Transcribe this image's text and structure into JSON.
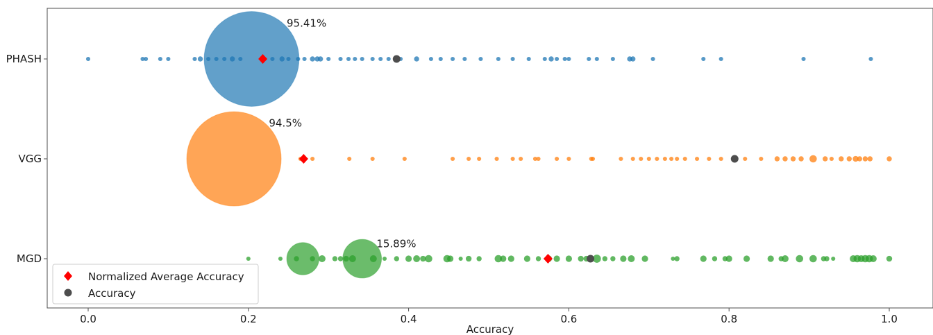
{
  "chart_data": {
    "type": "scatter",
    "title": "",
    "xlabel": "Accuracy",
    "ylabel": "",
    "xlim": [
      -0.05,
      1.05
    ],
    "x_ticks": [
      0.0,
      0.2,
      0.4,
      0.6,
      0.8,
      1.0
    ],
    "x_tick_labels": [
      "0.0",
      "0.2",
      "0.4",
      "0.6",
      "0.8",
      "1.0"
    ],
    "grid": false,
    "legend_position": "bottom-left",
    "legend": [
      {
        "label": "Normalized Average Accuracy",
        "marker": "diamond",
        "color": "#ff0000"
      },
      {
        "label": "Accuracy",
        "marker": "circle",
        "color": "#4d4d4d"
      }
    ],
    "series": [
      {
        "name": "PHASH",
        "color": "#1f77b4",
        "points": [
          {
            "x": 0.0,
            "s": 1
          },
          {
            "x": 0.068,
            "s": 1
          },
          {
            "x": 0.072,
            "s": 1
          },
          {
            "x": 0.09,
            "s": 1
          },
          {
            "x": 0.1,
            "s": 1
          },
          {
            "x": 0.133,
            "s": 1
          },
          {
            "x": 0.14,
            "s": 2
          },
          {
            "x": 0.15,
            "s": 1
          },
          {
            "x": 0.16,
            "s": 1
          },
          {
            "x": 0.17,
            "s": 1
          },
          {
            "x": 0.18,
            "s": 2
          },
          {
            "x": 0.19,
            "s": 1
          },
          {
            "x": 0.204,
            "s": 95.41
          },
          {
            "x": 0.22,
            "s": 1
          },
          {
            "x": 0.23,
            "s": 1
          },
          {
            "x": 0.242,
            "s": 2
          },
          {
            "x": 0.25,
            "s": 1
          },
          {
            "x": 0.262,
            "s": 1
          },
          {
            "x": 0.27,
            "s": 1
          },
          {
            "x": 0.28,
            "s": 2
          },
          {
            "x": 0.286,
            "s": 2
          },
          {
            "x": 0.29,
            "s": 2
          },
          {
            "x": 0.3,
            "s": 1
          },
          {
            "x": 0.315,
            "s": 1
          },
          {
            "x": 0.325,
            "s": 1
          },
          {
            "x": 0.333,
            "s": 1
          },
          {
            "x": 0.342,
            "s": 1
          },
          {
            "x": 0.355,
            "s": 1
          },
          {
            "x": 0.365,
            "s": 1
          },
          {
            "x": 0.375,
            "s": 1
          },
          {
            "x": 0.39,
            "s": 1
          },
          {
            "x": 0.41,
            "s": 2
          },
          {
            "x": 0.428,
            "s": 1
          },
          {
            "x": 0.44,
            "s": 1
          },
          {
            "x": 0.455,
            "s": 1
          },
          {
            "x": 0.47,
            "s": 1
          },
          {
            "x": 0.49,
            "s": 1
          },
          {
            "x": 0.512,
            "s": 1
          },
          {
            "x": 0.53,
            "s": 1
          },
          {
            "x": 0.55,
            "s": 1
          },
          {
            "x": 0.57,
            "s": 1
          },
          {
            "x": 0.578,
            "s": 2
          },
          {
            "x": 0.585,
            "s": 1
          },
          {
            "x": 0.595,
            "s": 1
          },
          {
            "x": 0.6,
            "s": 1
          },
          {
            "x": 0.625,
            "s": 1
          },
          {
            "x": 0.635,
            "s": 1
          },
          {
            "x": 0.655,
            "s": 1
          },
          {
            "x": 0.676,
            "s": 2
          },
          {
            "x": 0.68,
            "s": 2
          },
          {
            "x": 0.705,
            "s": 1
          },
          {
            "x": 0.768,
            "s": 1
          },
          {
            "x": 0.79,
            "s": 1
          },
          {
            "x": 0.893,
            "s": 1
          },
          {
            "x": 0.977,
            "s": 1
          }
        ],
        "normalized_average_accuracy": 0.218,
        "accuracy": 0.385,
        "max_label": "95.41%"
      },
      {
        "name": "VGG",
        "color": "#ff7f0e",
        "points": [
          {
            "x": 0.182,
            "s": 94.5
          },
          {
            "x": 0.265,
            "s": 1
          },
          {
            "x": 0.28,
            "s": 1
          },
          {
            "x": 0.326,
            "s": 1
          },
          {
            "x": 0.355,
            "s": 1
          },
          {
            "x": 0.395,
            "s": 1
          },
          {
            "x": 0.455,
            "s": 1
          },
          {
            "x": 0.475,
            "s": 1
          },
          {
            "x": 0.488,
            "s": 1
          },
          {
            "x": 0.51,
            "s": 1
          },
          {
            "x": 0.53,
            "s": 1
          },
          {
            "x": 0.54,
            "s": 1
          },
          {
            "x": 0.558,
            "s": 1
          },
          {
            "x": 0.562,
            "s": 1
          },
          {
            "x": 0.585,
            "s": 1
          },
          {
            "x": 0.6,
            "s": 1
          },
          {
            "x": 0.628,
            "s": 1
          },
          {
            "x": 0.63,
            "s": 1
          },
          {
            "x": 0.665,
            "s": 1
          },
          {
            "x": 0.68,
            "s": 1
          },
          {
            "x": 0.69,
            "s": 1
          },
          {
            "x": 0.7,
            "s": 1
          },
          {
            "x": 0.71,
            "s": 1
          },
          {
            "x": 0.72,
            "s": 1
          },
          {
            "x": 0.728,
            "s": 1
          },
          {
            "x": 0.735,
            "s": 1
          },
          {
            "x": 0.745,
            "s": 1
          },
          {
            "x": 0.76,
            "s": 1
          },
          {
            "x": 0.775,
            "s": 1
          },
          {
            "x": 0.79,
            "s": 1
          },
          {
            "x": 0.82,
            "s": 1
          },
          {
            "x": 0.84,
            "s": 1
          },
          {
            "x": 0.86,
            "s": 2
          },
          {
            "x": 0.87,
            "s": 2
          },
          {
            "x": 0.88,
            "s": 2
          },
          {
            "x": 0.89,
            "s": 2
          },
          {
            "x": 0.905,
            "s": 6
          },
          {
            "x": 0.92,
            "s": 2
          },
          {
            "x": 0.928,
            "s": 1
          },
          {
            "x": 0.94,
            "s": 2
          },
          {
            "x": 0.95,
            "s": 2
          },
          {
            "x": 0.958,
            "s": 3
          },
          {
            "x": 0.963,
            "s": 2
          },
          {
            "x": 0.97,
            "s": 2
          },
          {
            "x": 0.976,
            "s": 2
          },
          {
            "x": 1.0,
            "s": 2
          }
        ],
        "normalized_average_accuracy": 0.269,
        "accuracy": 0.807,
        "max_label": "94.5%"
      },
      {
        "name": "MGD",
        "color": "#2ca02c",
        "points": [
          {
            "x": 0.2,
            "s": 1
          },
          {
            "x": 0.24,
            "s": 1
          },
          {
            "x": 0.26,
            "s": 2
          },
          {
            "x": 0.268,
            "s": 11
          },
          {
            "x": 0.28,
            "s": 2
          },
          {
            "x": 0.292,
            "s": 5
          },
          {
            "x": 0.308,
            "s": 2
          },
          {
            "x": 0.315,
            "s": 2
          },
          {
            "x": 0.322,
            "s": 3
          },
          {
            "x": 0.33,
            "s": 5
          },
          {
            "x": 0.342,
            "s": 15.89
          },
          {
            "x": 0.356,
            "s": 5
          },
          {
            "x": 0.37,
            "s": 1
          },
          {
            "x": 0.385,
            "s": 2
          },
          {
            "x": 0.4,
            "s": 4
          },
          {
            "x": 0.41,
            "s": 5
          },
          {
            "x": 0.418,
            "s": 3
          },
          {
            "x": 0.425,
            "s": 6
          },
          {
            "x": 0.448,
            "s": 6
          },
          {
            "x": 0.452,
            "s": 4
          },
          {
            "x": 0.465,
            "s": 1
          },
          {
            "x": 0.475,
            "s": 3
          },
          {
            "x": 0.488,
            "s": 2
          },
          {
            "x": 0.512,
            "s": 6
          },
          {
            "x": 0.518,
            "s": 4
          },
          {
            "x": 0.528,
            "s": 4
          },
          {
            "x": 0.548,
            "s": 4
          },
          {
            "x": 0.562,
            "s": 2
          },
          {
            "x": 0.575,
            "s": 4
          },
          {
            "x": 0.585,
            "s": 4
          },
          {
            "x": 0.6,
            "s": 4
          },
          {
            "x": 0.615,
            "s": 3
          },
          {
            "x": 0.622,
            "s": 3
          },
          {
            "x": 0.635,
            "s": 8
          },
          {
            "x": 0.645,
            "s": 2
          },
          {
            "x": 0.655,
            "s": 2
          },
          {
            "x": 0.668,
            "s": 4
          },
          {
            "x": 0.678,
            "s": 5
          },
          {
            "x": 0.695,
            "s": 4
          },
          {
            "x": 0.73,
            "s": 1
          },
          {
            "x": 0.735,
            "s": 2
          },
          {
            "x": 0.768,
            "s": 4
          },
          {
            "x": 0.782,
            "s": 2
          },
          {
            "x": 0.795,
            "s": 2
          },
          {
            "x": 0.8,
            "s": 4
          },
          {
            "x": 0.822,
            "s": 4
          },
          {
            "x": 0.852,
            "s": 4
          },
          {
            "x": 0.865,
            "s": 2
          },
          {
            "x": 0.87,
            "s": 5
          },
          {
            "x": 0.888,
            "s": 6
          },
          {
            "x": 0.905,
            "s": 6
          },
          {
            "x": 0.918,
            "s": 2
          },
          {
            "x": 0.922,
            "s": 2
          },
          {
            "x": 0.93,
            "s": 1
          },
          {
            "x": 0.955,
            "s": 5
          },
          {
            "x": 0.96,
            "s": 6
          },
          {
            "x": 0.965,
            "s": 5
          },
          {
            "x": 0.97,
            "s": 6
          },
          {
            "x": 0.975,
            "s": 6
          },
          {
            "x": 0.98,
            "s": 5
          },
          {
            "x": 1.0,
            "s": 3
          }
        ],
        "normalized_average_accuracy": 0.574,
        "accuracy": 0.627,
        "max_label": "15.89%"
      }
    ]
  }
}
